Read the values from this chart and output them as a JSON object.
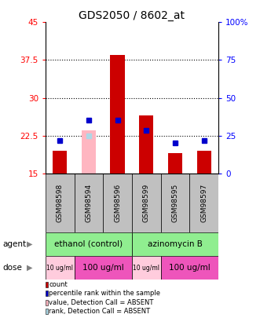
{
  "title": "GDS2050 / 8602_at",
  "samples": [
    "GSM98598",
    "GSM98594",
    "GSM98596",
    "GSM98599",
    "GSM98595",
    "GSM98597"
  ],
  "red_bars": [
    19.5,
    0,
    38.5,
    26.5,
    19.0,
    19.5
  ],
  "red_bars_absent": [
    0,
    23.5,
    0,
    0,
    0,
    0
  ],
  "blue_squares": [
    21.5,
    0,
    25.5,
    23.5,
    21.0,
    21.5
  ],
  "blue_squares_absent": [
    0,
    22.5,
    0,
    0,
    0,
    0
  ],
  "blue_on_absent_bar": [
    0,
    25.5,
    0,
    0,
    0,
    0
  ],
  "ylim_left": [
    15,
    45
  ],
  "ylim_right": [
    0,
    100
  ],
  "yticks_left": [
    15,
    22.5,
    30,
    37.5,
    45
  ],
  "yticks_right": [
    0,
    25,
    50,
    75,
    100
  ],
  "ytick_labels_left": [
    "15",
    "22.5",
    "30",
    "37.5",
    "45"
  ],
  "ytick_labels_right": [
    "0",
    "25",
    "50",
    "75",
    "100%"
  ],
  "agent_color": "#90EE90",
  "sample_bg_color": "#C0C0C0",
  "bar_color_red": "#CC0000",
  "bar_color_absent": "#FFB6C1",
  "square_color_blue": "#0000CC",
  "square_color_absent": "#ADD8E6",
  "legend_items": [
    {
      "color": "#CC0000",
      "label": "count"
    },
    {
      "color": "#0000CC",
      "label": "percentile rank within the sample"
    },
    {
      "color": "#FFB6C1",
      "label": "value, Detection Call = ABSENT"
    },
    {
      "color": "#ADD8E6",
      "label": "rank, Detection Call = ABSENT"
    }
  ],
  "dose_small_color": "#FFCCDD",
  "dose_large_color": "#EE55BB",
  "agent_spans": [
    [
      0,
      3,
      "ethanol (control)"
    ],
    [
      3,
      6,
      "azinomycin B"
    ]
  ],
  "dose_info": [
    [
      0,
      1,
      "10 ug/ml",
      "small"
    ],
    [
      1,
      3,
      "100 ug/ml",
      "large"
    ],
    [
      3,
      4,
      "10 ug/ml",
      "small"
    ],
    [
      4,
      6,
      "100 ug/ml",
      "large"
    ]
  ]
}
